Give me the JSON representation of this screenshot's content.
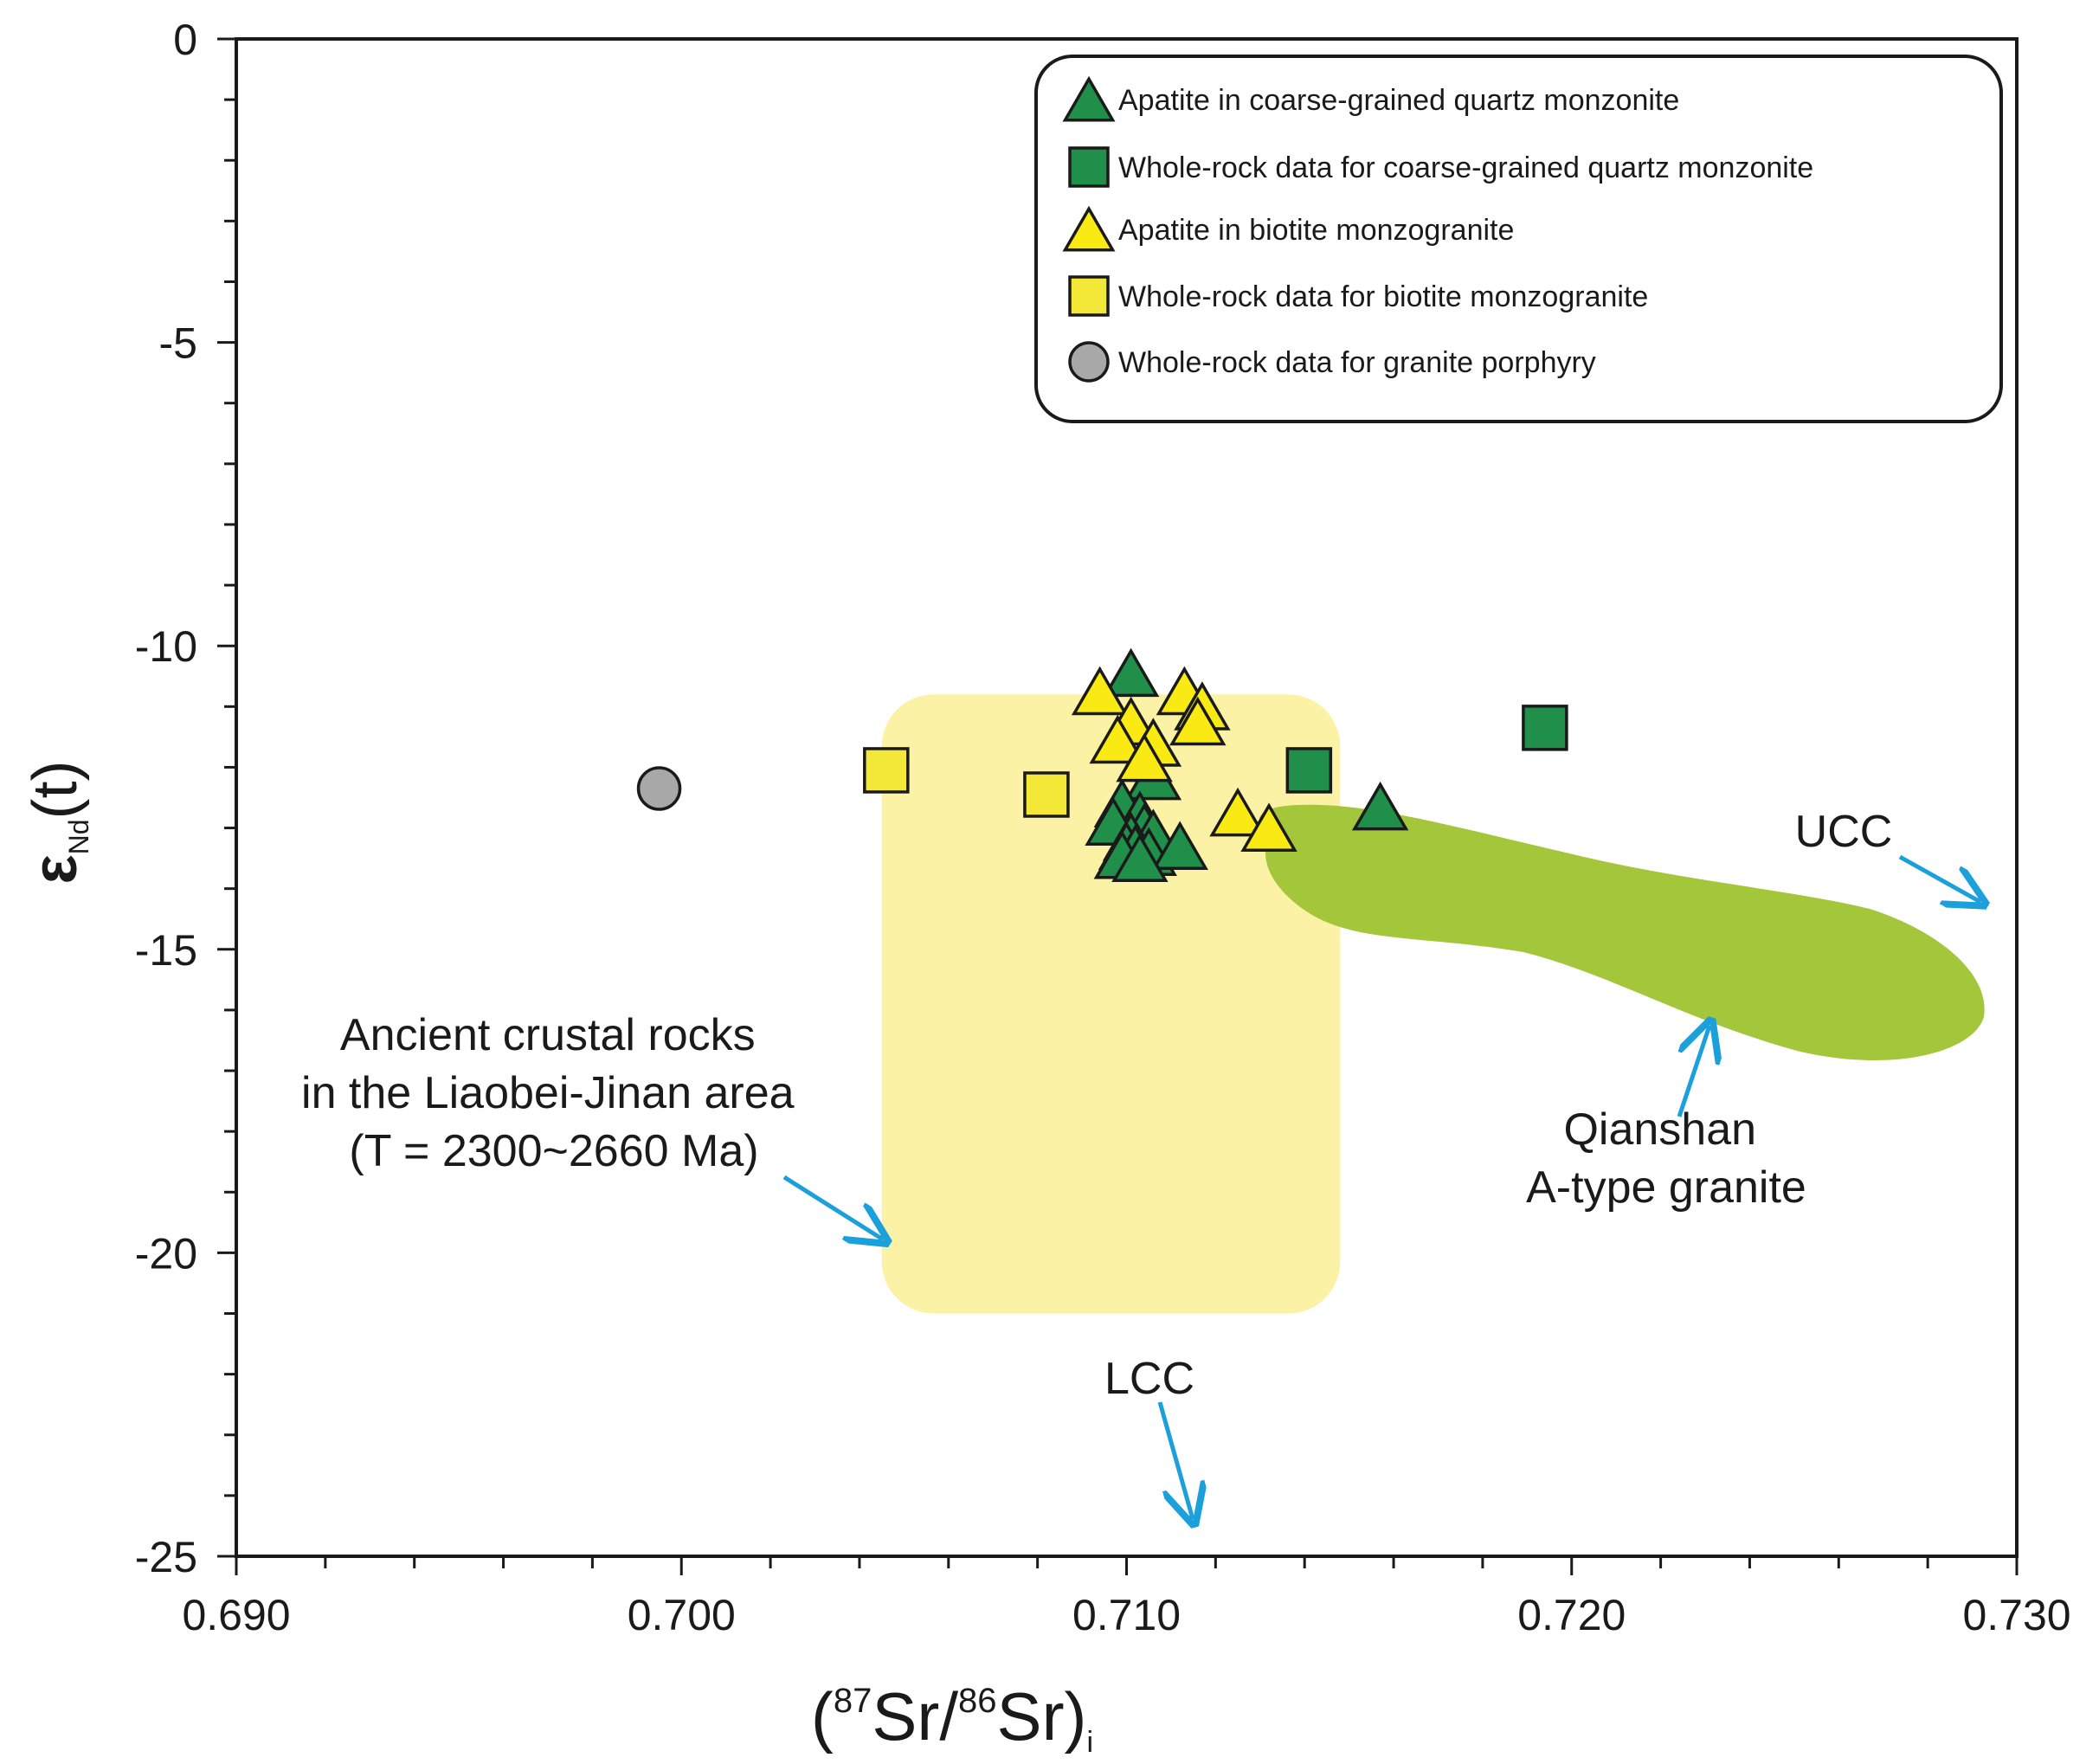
{
  "chart_data": {
    "type": "scatter",
    "title": "",
    "xlabel": {
      "open": "(",
      "sup1": "87",
      "mid": "Sr/",
      "sup2": "86",
      "tail": "Sr)",
      "sub": "i"
    },
    "ylabel": {
      "main": "ε",
      "sub": "Nd",
      "tail": "(t)"
    },
    "xlim": [
      0.69,
      0.73
    ],
    "ylim": [
      -25,
      0
    ],
    "x_major_ticks": [
      0.69,
      0.7,
      0.71,
      0.72,
      0.73
    ],
    "x_tick_labels": [
      "0.690",
      "0.700",
      "0.710",
      "0.720",
      "0.730"
    ],
    "x_minor_step": 0.002,
    "y_major_ticks": [
      0,
      -5,
      -10,
      -15,
      -20,
      -25
    ],
    "y_tick_labels": [
      "0",
      "-5",
      "-10",
      "-15",
      "-20",
      "-25"
    ],
    "y_minor_step": 1,
    "grid": false,
    "legend_position": "top-right",
    "colors": {
      "green": "#1f8f4a",
      "yellow": "#f8ea12",
      "yellow_square": "#f3e838",
      "grey": "#a8a8a8",
      "ancient_field": "#fbf2a6",
      "qianshan_field": "#a3c63a",
      "arrow": "#1ba0db",
      "outline": "#1a1a1a"
    },
    "series": [
      {
        "name": "Apatite in coarse-grained quartz monzonite",
        "marker": "triangle",
        "color": "#1f8f4a",
        "points": [
          [
            0.7101,
            -10.45
          ],
          [
            0.7106,
            -12.15
          ],
          [
            0.7099,
            -12.6
          ],
          [
            0.7103,
            -12.8
          ],
          [
            0.7097,
            -12.9
          ],
          [
            0.7104,
            -13.0
          ],
          [
            0.7106,
            -13.1
          ],
          [
            0.7101,
            -13.15
          ],
          [
            0.71,
            -13.3
          ],
          [
            0.7102,
            -13.35
          ],
          [
            0.7105,
            -13.4
          ],
          [
            0.7112,
            -13.3
          ],
          [
            0.7099,
            -13.45
          ],
          [
            0.7103,
            -13.5
          ],
          [
            0.7157,
            -12.65
          ]
        ]
      },
      {
        "name": "Whole-rock data for coarse-grained quartz monzonite",
        "marker": "square",
        "color": "#1f8f4a",
        "points": [
          [
            0.7141,
            -12.05
          ],
          [
            0.7194,
            -11.35
          ]
        ]
      },
      {
        "name": "Apatite in biotite monzogranite",
        "marker": "triangle",
        "color": "#f8ea12",
        "points": [
          [
            0.7094,
            -10.75
          ],
          [
            0.7113,
            -10.75
          ],
          [
            0.7117,
            -11.0
          ],
          [
            0.7116,
            -11.25
          ],
          [
            0.7101,
            -11.25
          ],
          [
            0.7098,
            -11.55
          ],
          [
            0.7106,
            -11.6
          ],
          [
            0.7104,
            -11.85
          ],
          [
            0.7125,
            -12.75
          ],
          [
            0.7132,
            -13.0
          ]
        ]
      },
      {
        "name": "Whole-rock data for biotite monzogranite",
        "marker": "square",
        "color": "#f3e838",
        "points": [
          [
            0.7046,
            -12.05
          ],
          [
            0.7082,
            -12.45
          ]
        ]
      },
      {
        "name": "Whole-rock data for granite porphyry",
        "marker": "circle",
        "color": "#a8a8a8",
        "points": [
          [
            0.6995,
            -12.35
          ]
        ]
      }
    ],
    "fields": [
      {
        "name": "ancient-crustal-field",
        "label_lines": [
          "Ancient crustal rocks",
          "in the Liaobei-Jinan area",
          "(T = 2300~2660 Ma)"
        ],
        "x_range": [
          0.7045,
          0.7148
        ],
        "y_range": [
          -21.0,
          -10.8
        ]
      },
      {
        "name": "qianshan-field",
        "label_lines": [
          "Qianshan",
          "A-type granite"
        ]
      }
    ],
    "annotations": [
      {
        "name": "ucc-label",
        "text": "UCC"
      },
      {
        "name": "lcc-label",
        "text": "LCC"
      }
    ]
  }
}
